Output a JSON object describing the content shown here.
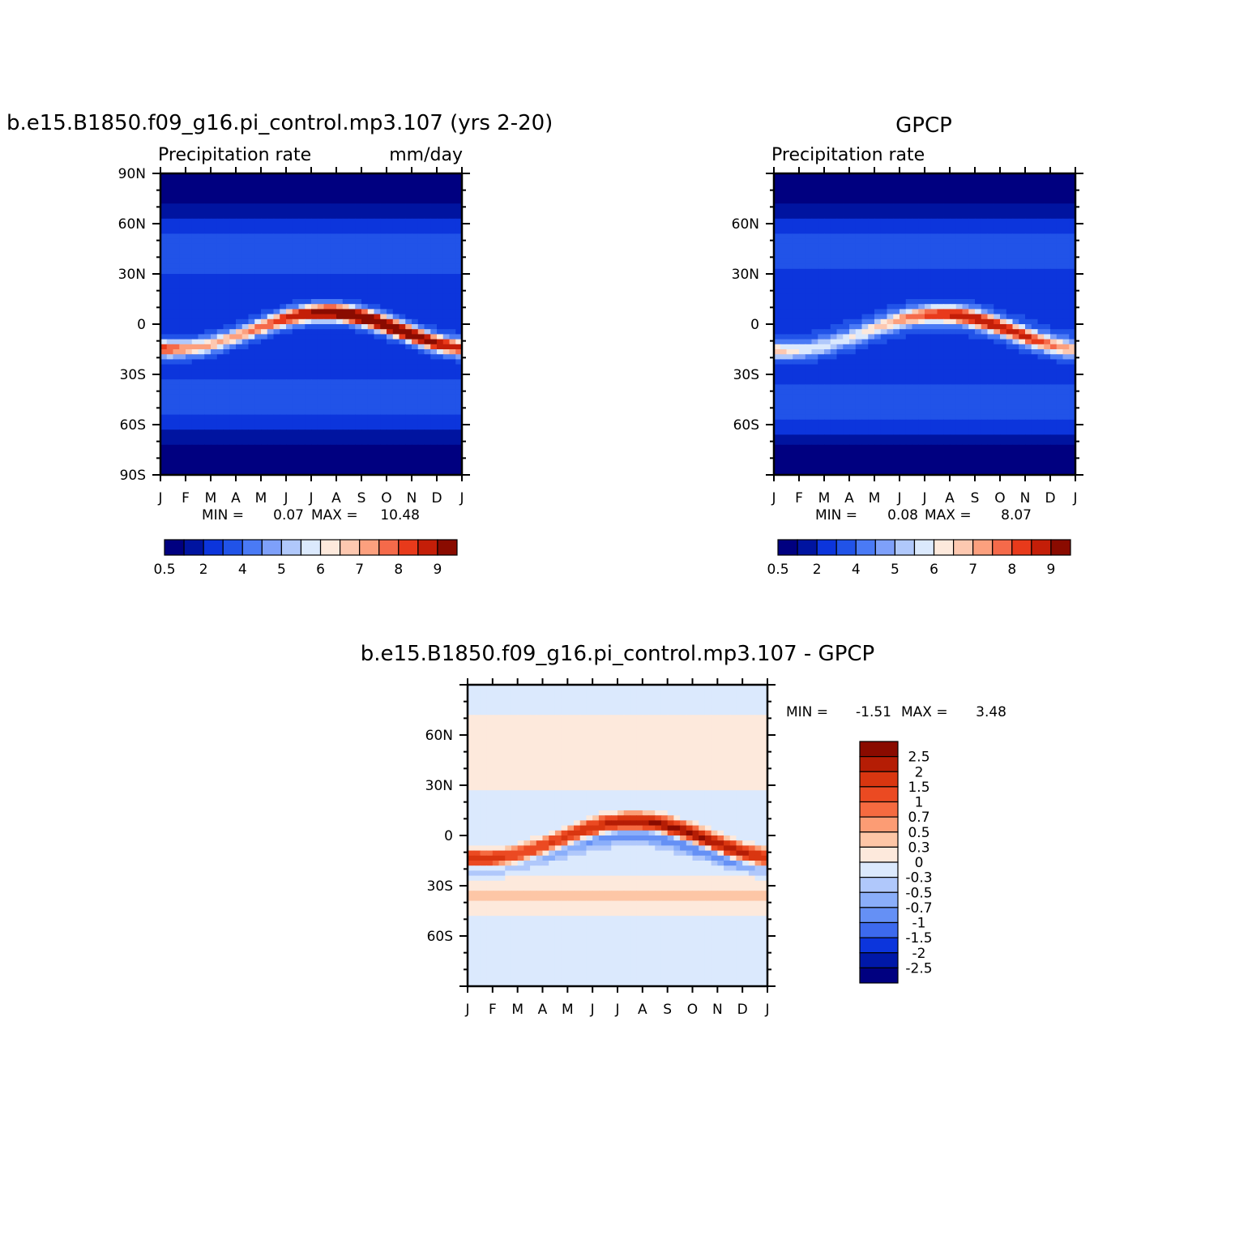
{
  "colors": {
    "precip_scale": [
      "#000080",
      "#0014a0",
      "#0c35dc",
      "#2153e8",
      "#4a7af5",
      "#7ea0fa",
      "#b0c8fb",
      "#dbe9fd",
      "#fde9dc",
      "#fdc8b0",
      "#fca07e",
      "#f56a4a",
      "#e83a1b",
      "#c41e08",
      "#8a0b00"
    ],
    "diff_scale": [
      "#8a0b00",
      "#b51d05",
      "#d93610",
      "#eb4a22",
      "#f56a40",
      "#fc9c74",
      "#fdc6a6",
      "#fde9dc",
      "#dbe9fd",
      "#b0c8fb",
      "#8aaefa",
      "#6590f5",
      "#3d6aee",
      "#0c35dc",
      "#0018a8",
      "#000080"
    ]
  },
  "panels": {
    "model": {
      "title": "b.e15.B1850.f09_g16.pi_control.mp3.107 (yrs 2-20)",
      "left_label": "Precipitation  rate",
      "right_label": "mm/day",
      "stats": {
        "min_label": "MIN =",
        "min": "0.07",
        "max_label": "MAX =",
        "max": "10.48"
      }
    },
    "obs": {
      "title": "GPCP",
      "left_label": "Precipitation  rate",
      "stats": {
        "min_label": "MIN =",
        "min": "0.08",
        "max_label": "MAX =",
        "max": "8.07"
      }
    },
    "diff": {
      "title": "b.e15.B1850.f09_g16.pi_control.mp3.107 - GPCP",
      "stats": {
        "min_label": "MIN =",
        "min": "-1.51",
        "max_label": "MAX =",
        "max": "3.48"
      }
    }
  },
  "chart_data": [
    {
      "type": "heatmap",
      "title": "b.e15.B1850.f09_g16.pi_control.mp3.107 (yrs 2-20)",
      "subtitle_left": "Precipitation  rate",
      "subtitle_right": "mm/day",
      "x_ticklabels": [
        "J",
        "F",
        "M",
        "A",
        "M",
        "J",
        "J",
        "A",
        "S",
        "O",
        "N",
        "D",
        "J"
      ],
      "y_ticklabels": [
        "90N",
        "60N",
        "30N",
        "0",
        "30S",
        "60S",
        "90S"
      ],
      "ylim": [
        -90,
        90
      ],
      "min": 0.07,
      "max": 10.48,
      "colorbar_labels": [
        "0.5",
        "2",
        "4",
        "5",
        "6",
        "7",
        "8",
        "9"
      ],
      "itcz_peak_mm_day": 10.48
    },
    {
      "type": "heatmap",
      "title": "GPCP",
      "subtitle_left": "Precipitation  rate",
      "x_ticklabels": [
        "J",
        "F",
        "M",
        "A",
        "M",
        "J",
        "J",
        "A",
        "S",
        "O",
        "N",
        "D",
        "J"
      ],
      "y_ticklabels": [
        "60N",
        "30N",
        "0",
        "30S",
        "60S"
      ],
      "ylim": [
        -90,
        90
      ],
      "min": 0.08,
      "max": 8.07,
      "colorbar_labels": [
        "0.5",
        "2",
        "4",
        "5",
        "6",
        "7",
        "8",
        "9"
      ]
    },
    {
      "type": "heatmap",
      "title": "b.e15.B1850.f09_g16.pi_control.mp3.107 - GPCP",
      "x_ticklabels": [
        "J",
        "F",
        "M",
        "A",
        "M",
        "J",
        "J",
        "A",
        "S",
        "O",
        "N",
        "D",
        "J"
      ],
      "y_ticklabels": [
        "60N",
        "30N",
        "0",
        "30S",
        "60S"
      ],
      "ylim": [
        -90,
        90
      ],
      "min": -1.51,
      "max": 3.48,
      "colorbar_labels": [
        "2.5",
        "2",
        "1.5",
        "1",
        "0.7",
        "0.5",
        "0.3",
        "0",
        "-0.3",
        "-0.5",
        "-0.7",
        "-1",
        "-1.5",
        "-2",
        "-2.5"
      ]
    }
  ]
}
